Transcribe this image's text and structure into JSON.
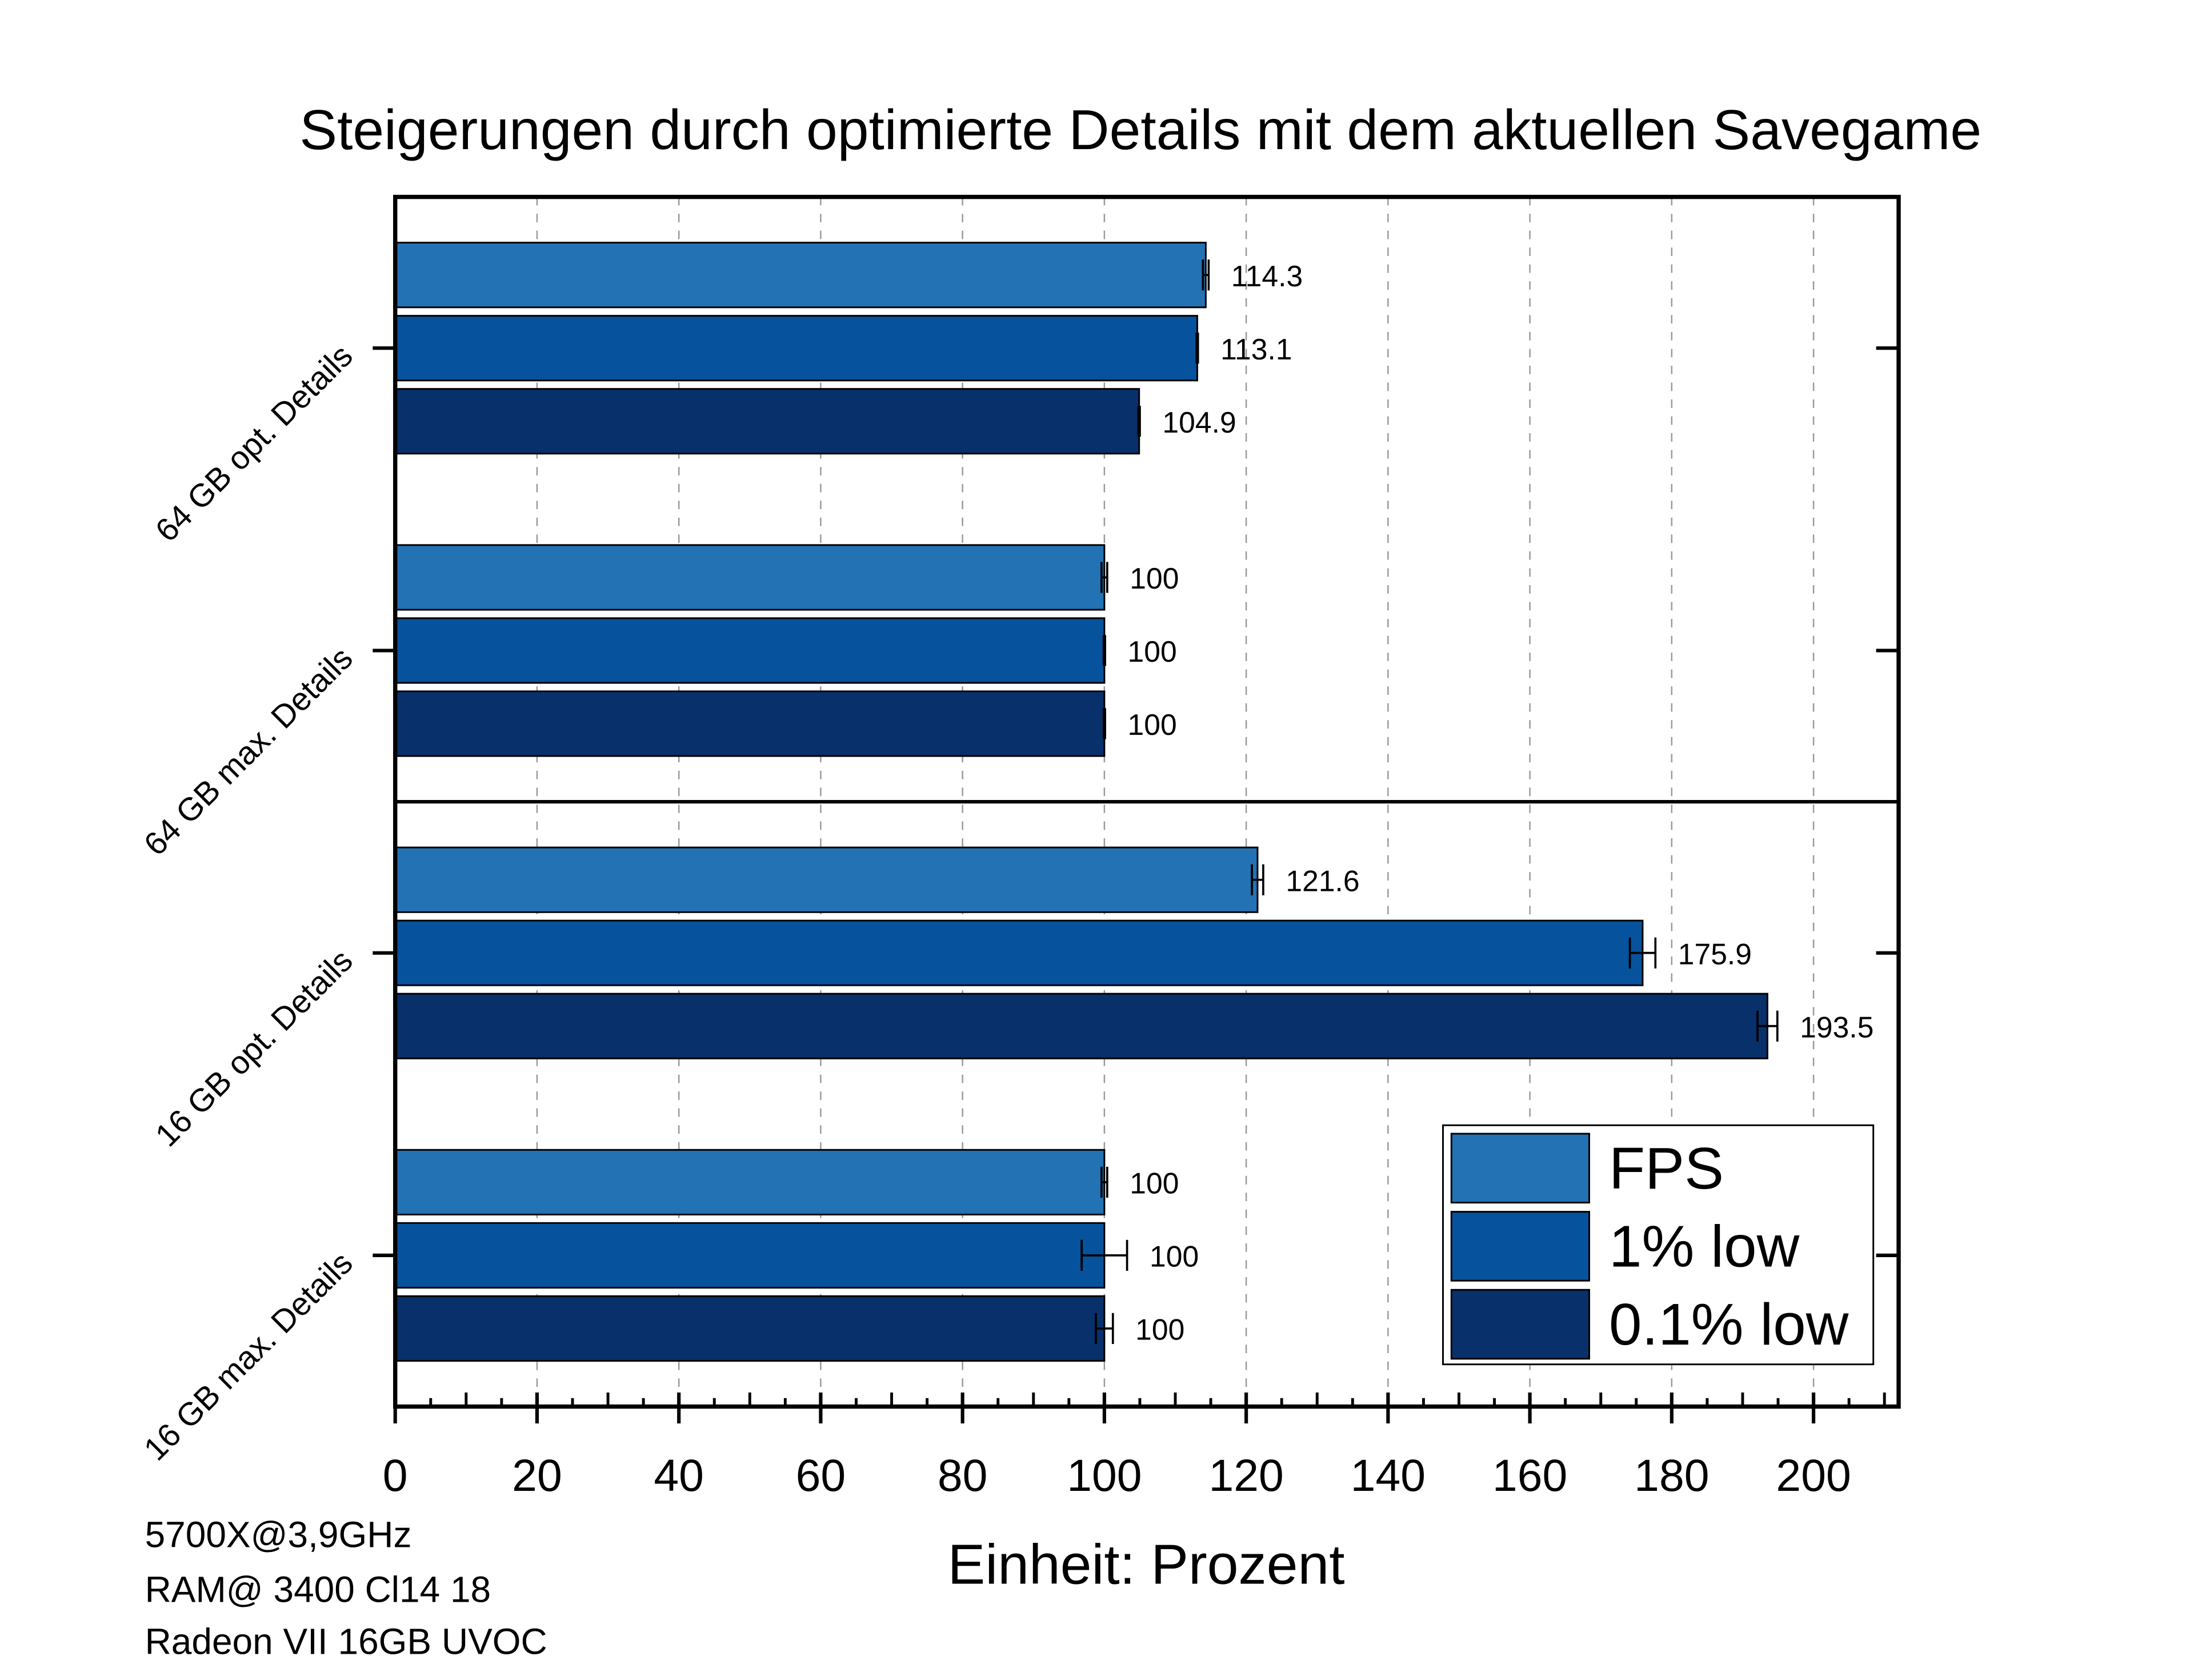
{
  "chart_data": {
    "type": "bar",
    "orientation": "horizontal",
    "title": "Steigerungen durch optimierte Details mit dem aktuellen Savegame",
    "xlabel": "Einheit: Prozent",
    "ylabel": "",
    "xlim": [
      0,
      212
    ],
    "xticks": [
      0,
      20,
      40,
      60,
      80,
      100,
      120,
      140,
      160,
      180,
      200
    ],
    "grid": "vertical dashed",
    "legend_placement": "bottom-right",
    "categories": [
      "64 GB opt. Details",
      "64 GB max. Details",
      "16 GB opt. Details",
      "16 GB max. Details"
    ],
    "series": [
      {
        "name": "FPS",
        "color": "#2372B4",
        "values": [
          114.3,
          100,
          121.6,
          100
        ],
        "errors": [
          0.4,
          0.4,
          0.8,
          0.4
        ],
        "labels": [
          "114.3",
          "100",
          "121.6",
          "100"
        ]
      },
      {
        "name": "1% low",
        "color": "#07529C",
        "values": [
          113.1,
          100,
          175.9,
          100
        ],
        "errors": [
          0.1,
          0.1,
          1.8,
          3.2
        ],
        "labels": [
          "113.1",
          "100",
          "175.9",
          "100"
        ]
      },
      {
        "name": "0.1% low",
        "color": "#08306B",
        "values": [
          104.9,
          100,
          193.5,
          100
        ],
        "errors": [
          0.1,
          0.1,
          1.4,
          1.2
        ],
        "labels": [
          "104.9",
          "100",
          "193.5",
          "100"
        ]
      }
    ],
    "annotations": [
      "5700X@3,9GHz",
      "RAM@ 3400 Cl14 18",
      "Radeon VII 16GB UVOC"
    ]
  }
}
